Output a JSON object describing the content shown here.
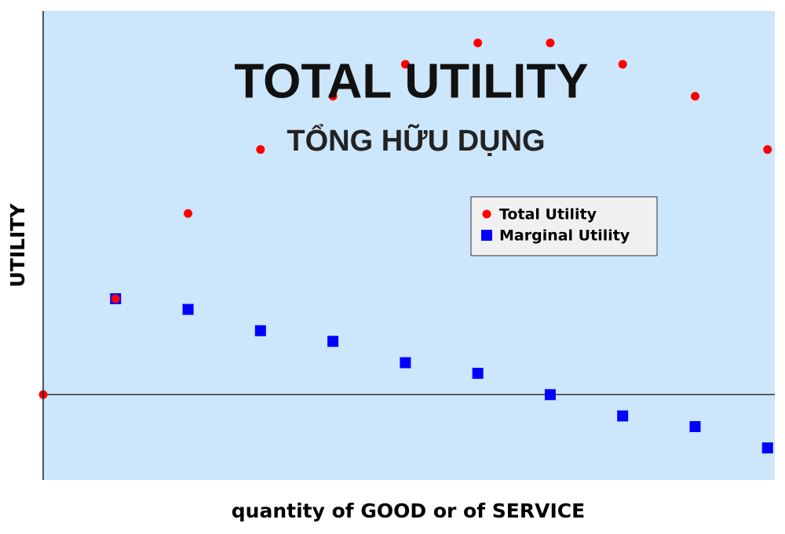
{
  "chart_data": {
    "type": "scatter",
    "title": "TOTAL UTILITY",
    "subtitle": "TỔNG HỮU DỤNG",
    "x_label": "quantity of GOOD or of SERVICE",
    "y_label": "UTILITY",
    "xlim": [
      0,
      10.1
    ],
    "ylim": [
      -8,
      36
    ],
    "series": [
      {
        "name": "Total Utility",
        "color": "#ff0000",
        "marker": "circle",
        "x": [
          0,
          1,
          2,
          3,
          4,
          5,
          6,
          7,
          8,
          9,
          10
        ],
        "values": [
          0,
          9,
          17,
          23,
          28,
          31,
          33,
          33,
          31,
          28,
          23
        ]
      },
      {
        "name": "Marginal Utility",
        "color": "#0000ff",
        "marker": "square",
        "x": [
          1,
          2,
          3,
          4,
          5,
          6,
          7,
          8,
          9,
          10
        ],
        "values": [
          9,
          8,
          6,
          5,
          3,
          2,
          0,
          -2,
          -3,
          -5
        ]
      }
    ]
  }
}
